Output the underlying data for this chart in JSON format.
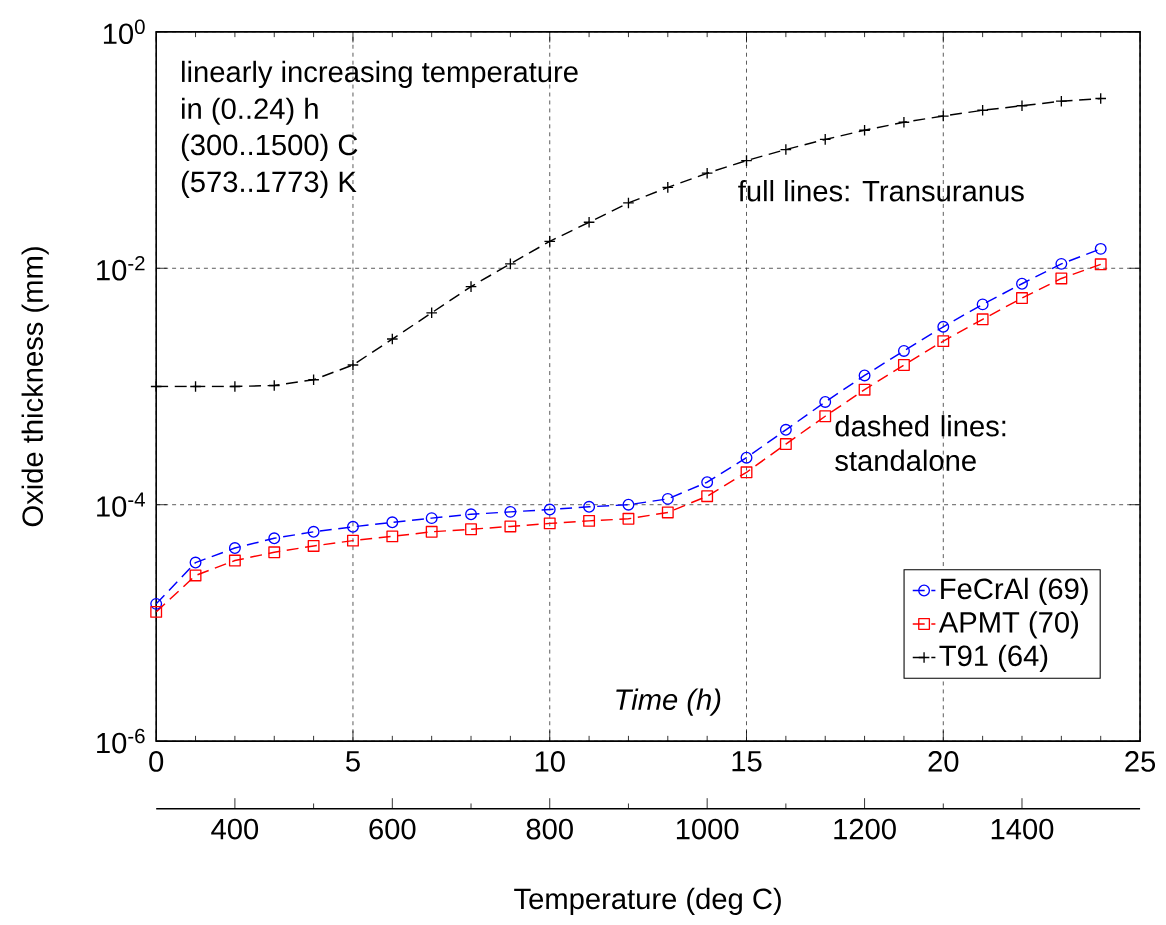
{
  "chart_data": {
    "type": "line",
    "xlabel": "Time (h)",
    "ylabel": "Oxide thickness (mm)",
    "x2label": "Temperature (deg C)",
    "x": [
      0,
      1,
      2,
      3,
      4,
      5,
      6,
      7,
      8,
      9,
      10,
      11,
      12,
      13,
      14,
      15,
      16,
      17,
      18,
      19,
      20,
      21,
      22,
      23,
      24
    ],
    "series": [
      {
        "name": "FeCrAl (69)",
        "color": "#0000ff",
        "line_style": "dashed",
        "marker": "circle",
        "values": [
          1.45e-05,
          3.24e-05,
          4.3e-05,
          5.2e-05,
          5.9e-05,
          6.5e-05,
          7.1e-05,
          7.7e-05,
          8.3e-05,
          8.7e-05,
          9.1e-05,
          9.6e-05,
          0.0001,
          0.000112,
          0.000155,
          0.00025,
          0.00043,
          0.00074,
          0.00124,
          0.002,
          0.0032,
          0.00495,
          0.0074,
          0.0109,
          0.0146
        ]
      },
      {
        "name": "APMT (70)",
        "color": "#ff0000",
        "line_style": "dashed",
        "marker": "square",
        "values": [
          1.24e-05,
          2.52e-05,
          3.37e-05,
          3.96e-05,
          4.48e-05,
          4.97e-05,
          5.4e-05,
          5.9e-05,
          6.2e-05,
          6.55e-05,
          6.95e-05,
          7.3e-05,
          7.6e-05,
          8.6e-05,
          0.000118,
          0.000188,
          0.000326,
          0.00056,
          0.00094,
          0.00152,
          0.00242,
          0.0037,
          0.0056,
          0.0082,
          0.0108
        ]
      },
      {
        "name": "T91 (64)",
        "color": "#000000",
        "line_style": "dashed",
        "marker": "cross",
        "values": [
          0.001,
          0.001,
          0.001,
          0.00102,
          0.00114,
          0.00152,
          0.00252,
          0.0042,
          0.007,
          0.0109,
          0.0169,
          0.0245,
          0.0357,
          0.0483,
          0.0637,
          0.0814,
          0.101,
          0.123,
          0.147,
          0.172,
          0.194,
          0.217,
          0.237,
          0.259,
          0.273
        ]
      }
    ],
    "xlim": [
      0,
      25
    ],
    "xticks": [
      0,
      5,
      10,
      15,
      20,
      25
    ],
    "ylim": [
      1e-06,
      1
    ],
    "log": "y",
    "yticks": [
      {
        "value": 1e-06,
        "label": "10$^{-6}$"
      },
      {
        "value": 0.0001,
        "label": "10$^{-4}$"
      },
      {
        "value": 0.01,
        "label": "10$^{-2}$"
      },
      {
        "value": 1,
        "label": "10$^{0}$"
      }
    ],
    "x2lim": [
      300,
      1550
    ],
    "x2ticks": [
      400,
      600,
      800,
      1000,
      1200,
      1400
    ],
    "grid": true,
    "legend": "bottom right",
    "annotations": [
      "linearly increasing temperature",
      "in (0..24) h",
      "(300..1500) C",
      "(573..1773) K",
      "full lines: Transuranus",
      "dashed lines: standalone"
    ]
  }
}
